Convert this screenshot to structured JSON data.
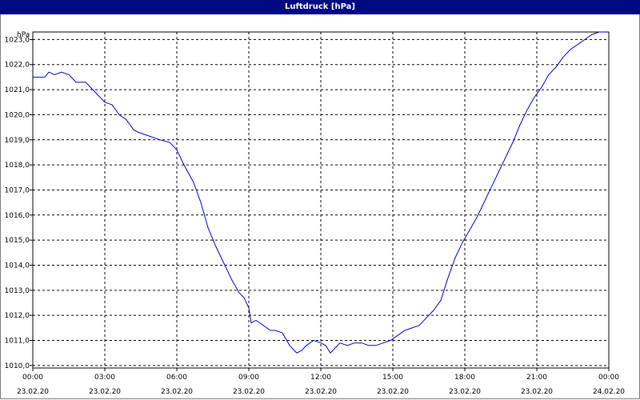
{
  "window": {
    "title": "Luftdruck [hPa]"
  },
  "chart_data": {
    "type": "line",
    "title": "Luftdruck [hPa]",
    "ylabel": "hPa",
    "xlabel": "",
    "ylim": [
      1009.9,
      1023.3
    ],
    "xlim": [
      0,
      24
    ],
    "yticks": [
      1010.0,
      1011.0,
      1012.0,
      1013.0,
      1014.0,
      1015.0,
      1016.0,
      1017.0,
      1018.0,
      1019.0,
      1020.0,
      1021.0,
      1022.0,
      1023.0
    ],
    "ytick_labels": [
      "1010,0",
      "1011,0",
      "1012,0",
      "1013,0",
      "1014,0",
      "1015,0",
      "1016,0",
      "1017,0",
      "1018,0",
      "1019,0",
      "1020,0",
      "1021,0",
      "1022,0",
      "1023,0"
    ],
    "xticks": [
      0,
      3,
      6,
      9,
      12,
      15,
      18,
      21,
      24
    ],
    "xtick_time_labels": [
      "00:00",
      "03:00",
      "06:00",
      "09:00",
      "12:00",
      "15:00",
      "18:00",
      "21:00",
      "00:00"
    ],
    "xtick_date_labels": [
      "23.02.20",
      "23.02.20",
      "23.02.20",
      "23.02.20",
      "23.02.20",
      "23.02.20",
      "23.02.20",
      "23.02.20",
      "24.02.20"
    ],
    "grid": true,
    "series_color": "#0000cc",
    "series": [
      {
        "x": [
          0,
          0.5,
          0.67,
          0.9,
          1.2,
          1.5,
          1.8,
          2.2,
          2.4,
          2.7,
          3.0,
          3.3,
          3.6,
          3.9,
          4.2,
          4.4,
          4.7,
          5.0,
          5.3,
          5.7,
          6.0,
          6.3,
          6.7,
          7.0,
          7.3,
          7.6,
          8.0,
          8.3,
          8.6,
          8.8,
          9.0,
          9.1,
          9.3,
          9.6,
          9.9,
          10.1,
          10.4,
          10.7,
          11.0,
          11.2,
          11.4,
          11.7,
          12.0,
          12.2,
          12.4,
          12.6,
          12.8,
          13.1,
          13.4,
          13.7,
          14.0,
          14.3,
          14.6,
          14.9,
          15.2,
          15.5,
          15.8,
          16.1,
          16.4,
          16.7,
          17.0,
          17.3,
          17.6,
          17.9,
          18.2,
          18.5,
          18.8,
          19.1,
          19.4,
          19.7,
          20.0,
          20.3,
          20.6,
          20.9,
          21.2,
          21.5,
          21.8,
          22.1,
          22.4,
          22.7,
          23.0,
          23.3,
          23.6,
          23.9
        ],
        "y": [
          1021.5,
          1021.5,
          1021.7,
          1021.6,
          1021.7,
          1021.6,
          1021.3,
          1021.3,
          1021.1,
          1020.8,
          1020.5,
          1020.4,
          1020.0,
          1019.8,
          1019.4,
          1019.3,
          1019.2,
          1019.1,
          1019.0,
          1018.9,
          1018.6,
          1018.0,
          1017.3,
          1016.5,
          1015.5,
          1014.8,
          1014.0,
          1013.4,
          1012.9,
          1012.7,
          1012.3,
          1011.7,
          1011.8,
          1011.6,
          1011.4,
          1011.4,
          1011.3,
          1010.8,
          1010.5,
          1010.6,
          1010.8,
          1011.0,
          1010.9,
          1010.8,
          1010.5,
          1010.7,
          1010.9,
          1010.8,
          1010.9,
          1010.9,
          1010.8,
          1010.8,
          1010.9,
          1011.0,
          1011.2,
          1011.4,
          1011.5,
          1011.6,
          1011.9,
          1012.2,
          1012.6,
          1013.5,
          1014.3,
          1014.9,
          1015.4,
          1015.9,
          1016.5,
          1017.1,
          1017.7,
          1018.3,
          1018.9,
          1019.6,
          1020.2,
          1020.7,
          1021.1,
          1021.6,
          1021.9,
          1022.3,
          1022.6,
          1022.8,
          1023.0,
          1023.2,
          1023.3,
          1023.3
        ]
      }
    ]
  }
}
